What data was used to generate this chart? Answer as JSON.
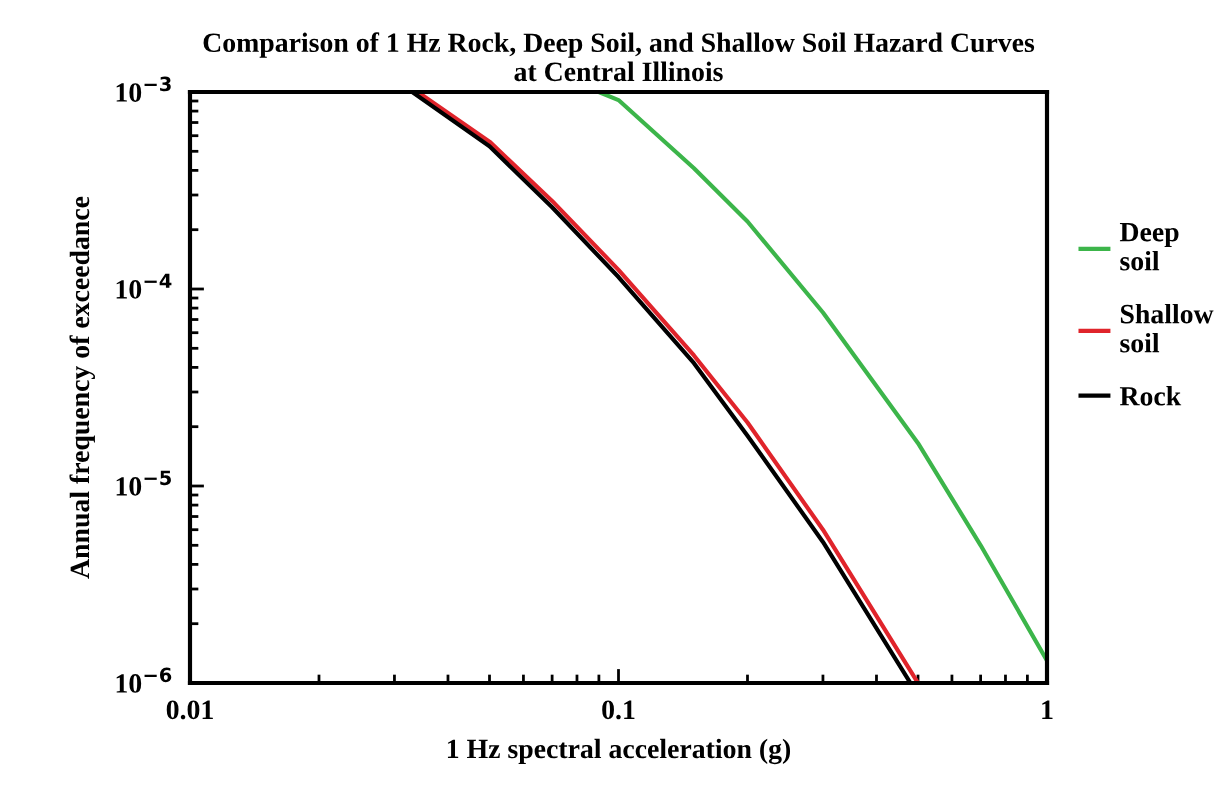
{
  "chart_data": {
    "type": "line",
    "title": "Comparison of 1 Hz Rock, Deep Soil, and Shallow Soil Hazard Curves\nat Central Illinois",
    "xlabel": "1 Hz spectral acceleration (g)",
    "ylabel": "Annual frequency of exceedance",
    "log": "xy",
    "xlim": [
      0.01,
      1
    ],
    "ylim": [
      1e-06,
      0.001
    ],
    "xticks": [
      0.01,
      0.1,
      1
    ],
    "yticks": [
      {
        "value": 1e-06,
        "label": "10$^{−6}$"
      },
      {
        "value": 1e-05,
        "label": "10$^{−5}$"
      },
      {
        "value": 0.0001,
        "label": "10$^{−4}$"
      },
      {
        "value": 0.001,
        "label": "10$^{−3}$"
      }
    ],
    "grid": false,
    "legend": "right",
    "marker": "none",
    "line_style": "solid",
    "series": [
      {
        "name": "Deep soil",
        "color": "#3cb54a",
        "x": [
          0.09,
          0.1,
          0.15,
          0.2,
          0.3,
          0.5,
          0.7,
          1
        ],
        "values": [
          0.001,
          0.00091,
          0.00041,
          0.00022,
          7.6e-05,
          1.65e-05,
          5e-06,
          1.3e-06
        ]
      },
      {
        "name": "Shallow soil",
        "color": "#e0242b",
        "x": [
          0.034,
          0.05,
          0.07,
          0.1,
          0.15,
          0.2,
          0.3,
          0.5
        ],
        "values": [
          0.001,
          0.00056,
          0.00028,
          0.000125,
          4.6e-05,
          2.1e-05,
          6e-06,
          1e-06
        ]
      },
      {
        "name": "Rock",
        "color": "#000000",
        "x": [
          0.033,
          0.05,
          0.07,
          0.1,
          0.15,
          0.2,
          0.3,
          0.48
        ],
        "values": [
          0.001,
          0.00053,
          0.00026,
          0.000115,
          4.2e-05,
          1.8e-05,
          5.2e-06,
          1e-06
        ]
      }
    ]
  }
}
